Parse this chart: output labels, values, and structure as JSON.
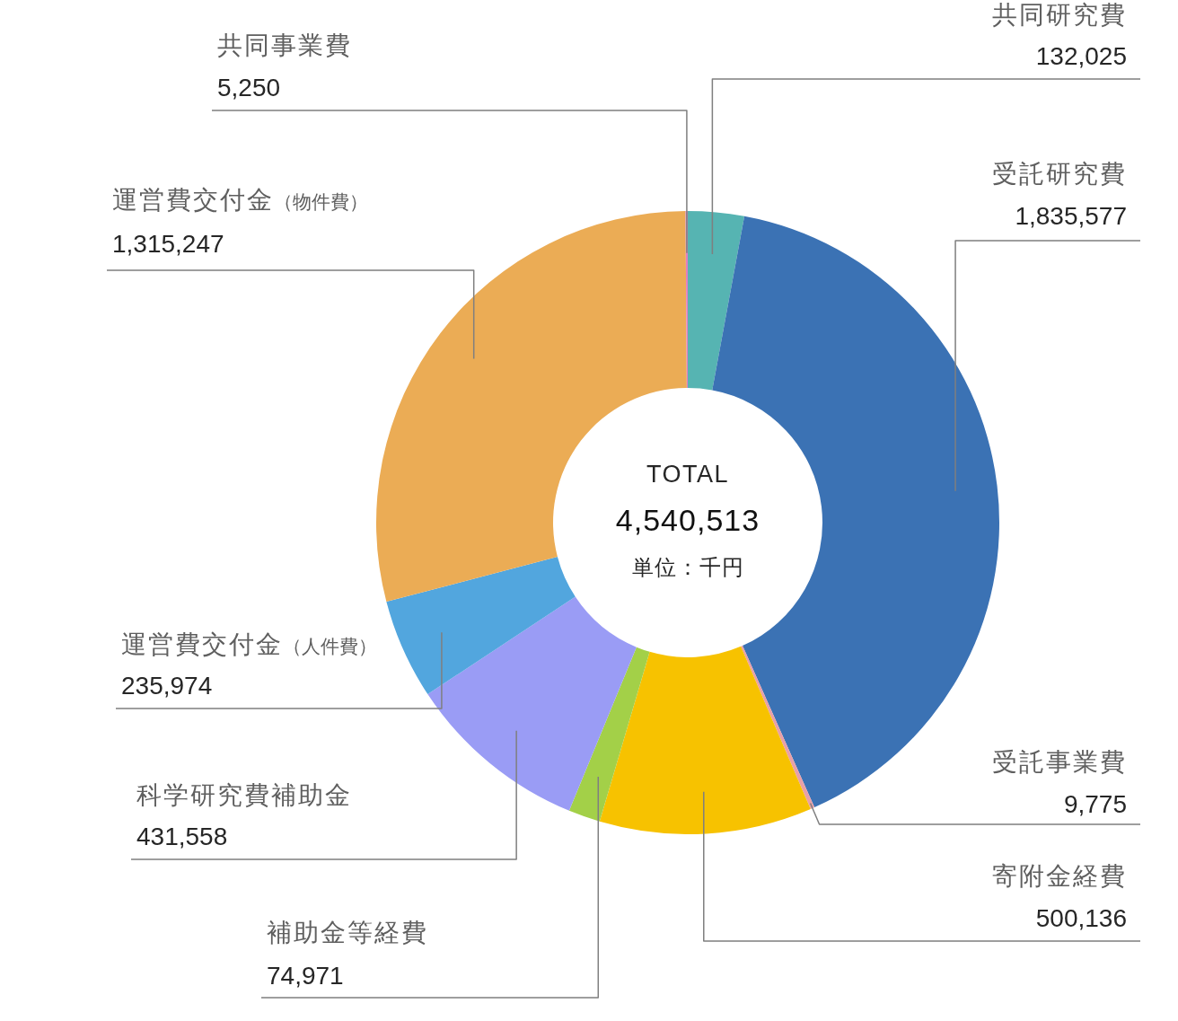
{
  "chart_data": {
    "type": "donut",
    "categories": [
      "共同研究費",
      "受託研究費",
      "受託事業費",
      "寄附金経費",
      "補助金等経費",
      "科学研究費補助金",
      "運営費交付金（人件費）",
      "運営費交付金（物件費）",
      "共同事業費"
    ],
    "values": [
      132025,
      1835577,
      9775,
      500136,
      74971,
      431558,
      235974,
      1315247,
      5250
    ],
    "value_labels": [
      "132,025",
      "1,835,577",
      "9,775",
      "500,136",
      "74,971",
      "431,558",
      "235,974",
      "1,315,247",
      "5,250"
    ],
    "colors": [
      "#56b4b2",
      "#3b72b4",
      "#e8a0a8",
      "#f7c200",
      "#a3d048",
      "#9a9cf5",
      "#52a6de",
      "#ebac55",
      "#e07ec0"
    ],
    "annotations": [
      "TOTAL",
      "4,540,513",
      "単位：千円"
    ]
  }
}
